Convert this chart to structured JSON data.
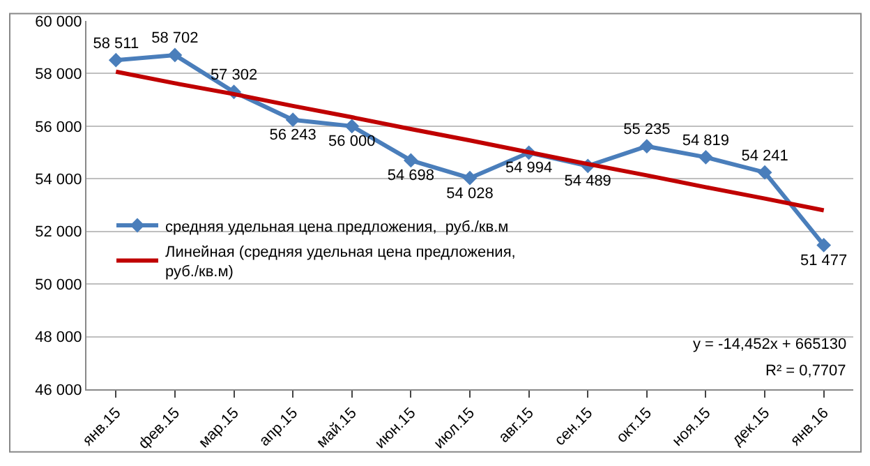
{
  "chart_data": {
    "type": "line",
    "categories": [
      "янв.15",
      "фев.15",
      "мар.15",
      "апр.15",
      "май.15",
      "июн.15",
      "июл.15",
      "авг.15",
      "сен.15",
      "окт.15",
      "ноя.15",
      "дек.15",
      "янв.16"
    ],
    "series": [
      {
        "name": "средняя удельная цена предложения,  руб./кв.м",
        "color": "#4a7ebb",
        "marker": "diamond",
        "values": [
          58511,
          58702,
          57302,
          56243,
          56000,
          54698,
          54028,
          54994,
          54489,
          55235,
          54819,
          54241,
          51477
        ],
        "value_labels": [
          "58 511",
          "58 702",
          "57 302",
          "56 243",
          "56 000",
          "54 698",
          "54 028",
          "54 994",
          "54 489",
          "55 235",
          "54 819",
          "54 241",
          "51 477"
        ]
      },
      {
        "name": "Линейная (средняя удельная цена предложения, руб./кв.м)",
        "color": "#c00000",
        "marker": "none",
        "values": [
          58070,
          57630,
          57220,
          56770,
          56340,
          55890,
          55460,
          55010,
          54560,
          54130,
          53680,
          53250,
          52800
        ]
      }
    ],
    "ylim": [
      46000,
      60000
    ],
    "yticks": [
      {
        "value": 46000,
        "label": "46 000"
      },
      {
        "value": 48000,
        "label": "48 000"
      },
      {
        "value": 50000,
        "label": "50 000"
      },
      {
        "value": 52000,
        "label": "52 000"
      },
      {
        "value": 54000,
        "label": "54 000"
      },
      {
        "value": 56000,
        "label": "56 000"
      },
      {
        "value": 58000,
        "label": "58 000"
      },
      {
        "value": 60000,
        "label": "60 000"
      }
    ],
    "grid": "y",
    "legend": "left",
    "annotations": [
      "y = -14,452x + 665130",
      "R² = 0,7707"
    ]
  }
}
